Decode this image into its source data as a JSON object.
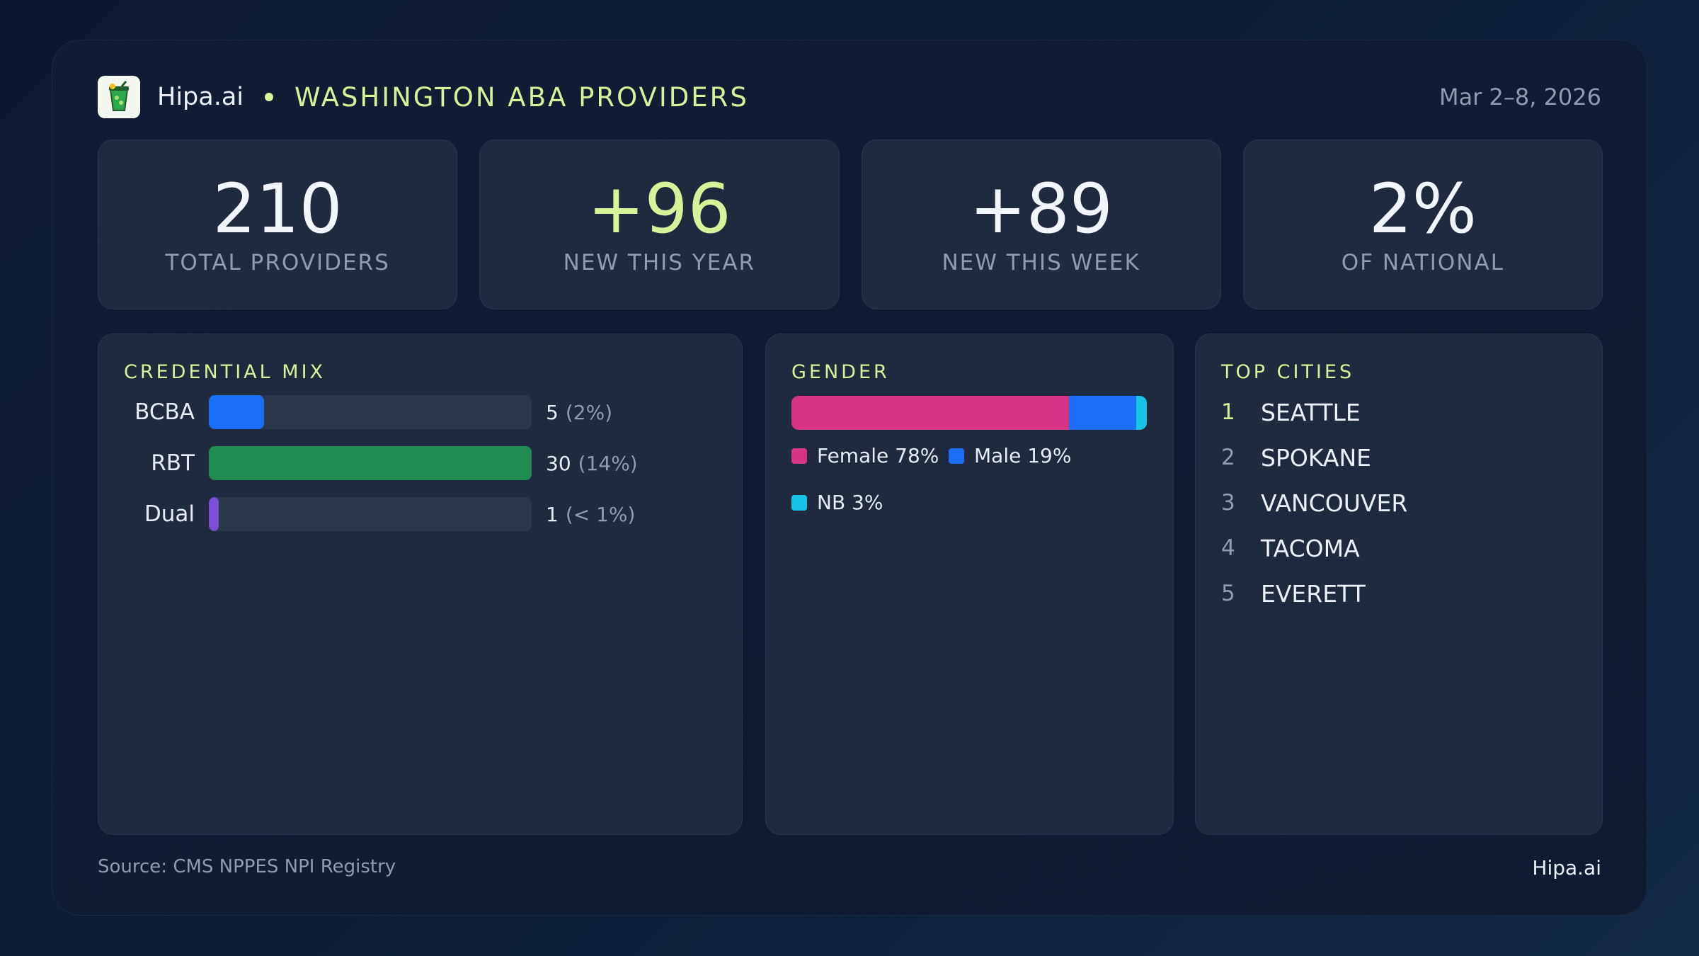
{
  "header": {
    "brand": "Hipa.ai",
    "title": "WASHINGTON ABA PROVIDERS",
    "date": "Mar 2–8, 2026",
    "logo_icon": "smoothie-cup-icon"
  },
  "stats": [
    {
      "value": "210",
      "label": "TOTAL PROVIDERS"
    },
    {
      "value": "+96",
      "label": "NEW THIS YEAR"
    },
    {
      "value": "+89",
      "label": "NEW THIS WEEK"
    },
    {
      "value": "2%",
      "label": "OF NATIONAL"
    }
  ],
  "credential": {
    "title": "CREDENTIAL MIX",
    "rows": [
      {
        "name": "BCBA",
        "count": "5",
        "pct": "(2%)",
        "fill": 0.17,
        "color": "#1a6ef5"
      },
      {
        "name": "RBT",
        "count": "30",
        "pct": "(14%)",
        "fill": 1.0,
        "color": "#1f8a52"
      },
      {
        "name": "Dual",
        "count": "1",
        "pct": "(< 1%)",
        "fill": 0.03,
        "color": "#7a4fd6"
      }
    ]
  },
  "gender": {
    "title": "GENDER",
    "segments": [
      {
        "label": "Female 78%",
        "share": 78,
        "color": "#d63384"
      },
      {
        "label": "Male 19%",
        "share": 19,
        "color": "#1a6ef5"
      },
      {
        "label": "NB 3%",
        "share": 3,
        "color": "#17c4e8"
      }
    ]
  },
  "cities": {
    "title": "TOP CITIES",
    "items": [
      {
        "rank": "1",
        "name": "SEATTLE"
      },
      {
        "rank": "2",
        "name": "SPOKANE"
      },
      {
        "rank": "3",
        "name": "VANCOUVER"
      },
      {
        "rank": "4",
        "name": "TACOMA"
      },
      {
        "rank": "5",
        "name": "EVERETT"
      }
    ]
  },
  "footer": {
    "source": "Source: CMS NPPES NPI Registry",
    "brand": "Hipa.ai"
  }
}
